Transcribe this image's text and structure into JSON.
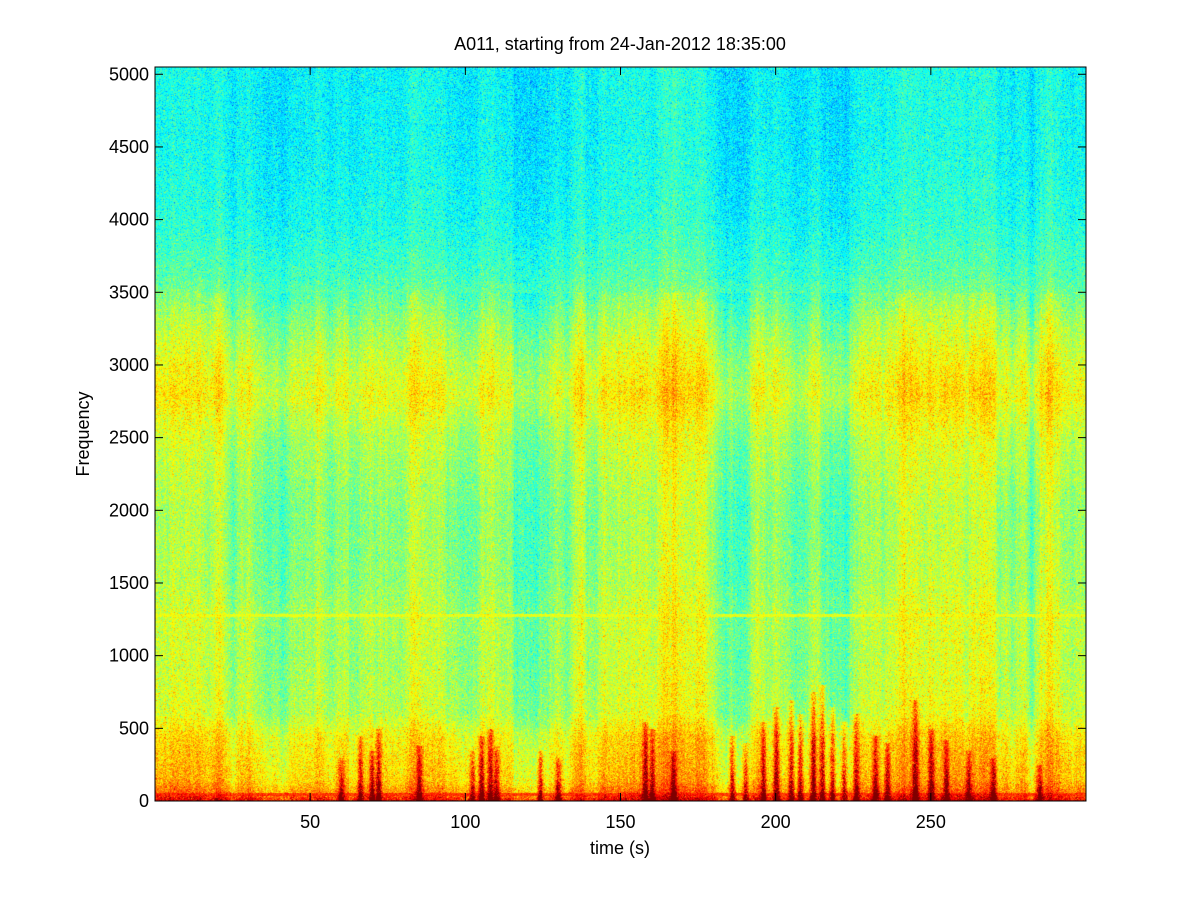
{
  "chart_data": {
    "type": "heatmap",
    "subtype": "spectrogram",
    "title": "A011, starting from 24-Jan-2012 18:35:00",
    "xlabel": "time (s)",
    "ylabel": "Frequency",
    "xlim": [
      0,
      300
    ],
    "ylim": [
      0,
      5050
    ],
    "x_ticks": [
      50,
      100,
      150,
      200,
      250
    ],
    "x_tick_labels": [
      "50",
      "100",
      "150",
      "200",
      "250"
    ],
    "y_ticks": [
      0,
      500,
      1000,
      1500,
      2000,
      2500,
      3000,
      3500,
      4000,
      4500,
      5000
    ],
    "y_tick_labels": [
      "0",
      "500",
      "1000",
      "1500",
      "2000",
      "2500",
      "3000",
      "3500",
      "4000",
      "4500",
      "5000"
    ],
    "colormap": "jet",
    "grid": false,
    "colors": {
      "background": "#ffffff",
      "axes": "#000000"
    },
    "frequency_intensity_profile": {
      "frequency": [
        0,
        50,
        150,
        300,
        450,
        600,
        1000,
        1280,
        1500,
        2000,
        2500,
        2800,
        3000,
        3300,
        3600,
        4000,
        4500,
        5050
      ],
      "level": [
        0.86,
        0.76,
        0.68,
        0.66,
        0.64,
        0.57,
        0.55,
        0.56,
        0.53,
        0.52,
        0.56,
        0.62,
        0.59,
        0.53,
        0.45,
        0.4,
        0.38,
        0.38
      ]
    },
    "narrowband_lines": [
      {
        "frequency": 1280,
        "level": 0.6
      },
      {
        "frequency": 50,
        "level": 0.78
      }
    ],
    "transient_events": [
      {
        "time": 60,
        "max_frequency": 300,
        "level": 0.85
      },
      {
        "time": 66,
        "max_frequency": 450,
        "level": 0.87
      },
      {
        "time": 70,
        "max_frequency": 350,
        "level": 0.88
      },
      {
        "time": 72,
        "max_frequency": 500,
        "level": 0.9
      },
      {
        "time": 85,
        "max_frequency": 380,
        "level": 0.87
      },
      {
        "time": 102,
        "max_frequency": 350,
        "level": 0.86
      },
      {
        "time": 105,
        "max_frequency": 450,
        "level": 0.88
      },
      {
        "time": 108,
        "max_frequency": 500,
        "level": 0.87
      },
      {
        "time": 110,
        "max_frequency": 380,
        "level": 0.86
      },
      {
        "time": 124,
        "max_frequency": 350,
        "level": 0.86
      },
      {
        "time": 130,
        "max_frequency": 300,
        "level": 0.85
      },
      {
        "time": 158,
        "max_frequency": 550,
        "level": 0.9
      },
      {
        "time": 160,
        "max_frequency": 500,
        "level": 0.88
      },
      {
        "time": 167,
        "max_frequency": 350,
        "level": 0.86
      },
      {
        "time": 186,
        "max_frequency": 450,
        "level": 0.87
      },
      {
        "time": 190,
        "max_frequency": 400,
        "level": 0.86
      },
      {
        "time": 196,
        "max_frequency": 550,
        "level": 0.88
      },
      {
        "time": 200,
        "max_frequency": 650,
        "level": 0.89
      },
      {
        "time": 205,
        "max_frequency": 700,
        "level": 0.9
      },
      {
        "time": 208,
        "max_frequency": 600,
        "level": 0.9
      },
      {
        "time": 212,
        "max_frequency": 750,
        "level": 0.91
      },
      {
        "time": 215,
        "max_frequency": 800,
        "level": 0.92
      },
      {
        "time": 218,
        "max_frequency": 650,
        "level": 0.9
      },
      {
        "time": 222,
        "max_frequency": 550,
        "level": 0.88
      },
      {
        "time": 226,
        "max_frequency": 600,
        "level": 0.89
      },
      {
        "time": 232,
        "max_frequency": 450,
        "level": 0.87
      },
      {
        "time": 236,
        "max_frequency": 400,
        "level": 0.86
      },
      {
        "time": 245,
        "max_frequency": 700,
        "level": 0.91
      },
      {
        "time": 250,
        "max_frequency": 500,
        "level": 0.88
      },
      {
        "time": 255,
        "max_frequency": 420,
        "level": 0.86
      },
      {
        "time": 262,
        "max_frequency": 350,
        "level": 0.86
      },
      {
        "time": 270,
        "max_frequency": 300,
        "level": 0.85
      },
      {
        "time": 285,
        "max_frequency": 250,
        "level": 0.84
      }
    ]
  }
}
